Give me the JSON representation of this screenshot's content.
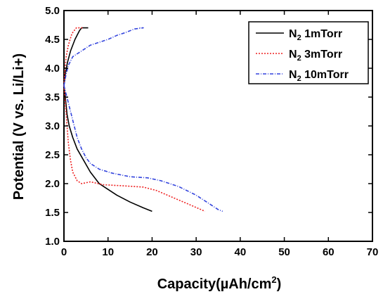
{
  "chart_data": {
    "type": "line",
    "xlabel_main": "Capacity(µAh/cm",
    "xlabel_sup": "2",
    "xlabel_close": ")",
    "ylabel": "Potential (V vs. Li/Li+)",
    "xlim": [
      0,
      70
    ],
    "ylim": [
      1.0,
      5.0
    ],
    "x_ticks": [
      "0",
      "10",
      "20",
      "30",
      "40",
      "50",
      "60",
      "70"
    ],
    "y_ticks": [
      "1.0",
      "1.5",
      "2.0",
      "2.5",
      "3.0",
      "3.5",
      "4.0",
      "4.5",
      "5.0"
    ],
    "grid": false,
    "legend_position": "top-right",
    "series": [
      {
        "name_main": "N",
        "name_sub": "2",
        "name_rest": " 1mTorr",
        "color": "#000000",
        "dash": "solid",
        "discharge": [
          [
            0,
            3.7
          ],
          [
            0.3,
            3.5
          ],
          [
            0.7,
            3.2
          ],
          [
            1.2,
            3.0
          ],
          [
            2,
            2.8
          ],
          [
            3,
            2.6
          ],
          [
            4.5,
            2.4
          ],
          [
            6,
            2.2
          ],
          [
            8,
            2.0
          ],
          [
            10,
            1.9
          ],
          [
            12,
            1.8
          ],
          [
            15,
            1.68
          ],
          [
            18,
            1.58
          ],
          [
            20,
            1.52
          ]
        ],
        "charge": [
          [
            0,
            3.7
          ],
          [
            0.3,
            3.9
          ],
          [
            0.8,
            4.1
          ],
          [
            1.5,
            4.3
          ],
          [
            2.5,
            4.5
          ],
          [
            3.5,
            4.65
          ],
          [
            4.0,
            4.7
          ],
          [
            5.5,
            4.7
          ]
        ]
      },
      {
        "name_main": "N",
        "name_sub": "2",
        "name_rest": " 3mTorr",
        "color": "#ee2222",
        "dash": "dotted",
        "discharge": [
          [
            0,
            3.7
          ],
          [
            0.3,
            3.4
          ],
          [
            0.7,
            3.0
          ],
          [
            1.0,
            2.7
          ],
          [
            1.5,
            2.4
          ],
          [
            2.0,
            2.2
          ],
          [
            3.0,
            2.05
          ],
          [
            4.0,
            2.0
          ],
          [
            6,
            2.03
          ],
          [
            9,
            1.98
          ],
          [
            14,
            1.96
          ],
          [
            18,
            1.94
          ],
          [
            21,
            1.88
          ],
          [
            25,
            1.75
          ],
          [
            29,
            1.62
          ],
          [
            32,
            1.52
          ]
        ],
        "charge": [
          [
            0,
            3.7
          ],
          [
            0.2,
            3.95
          ],
          [
            0.5,
            4.2
          ],
          [
            1.0,
            4.4
          ],
          [
            1.8,
            4.6
          ],
          [
            2.8,
            4.7
          ],
          [
            4.5,
            4.7
          ]
        ]
      },
      {
        "name_main": "N",
        "name_sub": "2",
        "name_rest": " 10mTorr",
        "color": "#3344dd",
        "dash": "dashdot",
        "discharge": [
          [
            0,
            3.7
          ],
          [
            1,
            3.4
          ],
          [
            2,
            3.1
          ],
          [
            3,
            2.8
          ],
          [
            4,
            2.6
          ],
          [
            5,
            2.45
          ],
          [
            6,
            2.35
          ],
          [
            8,
            2.25
          ],
          [
            11,
            2.18
          ],
          [
            15,
            2.12
          ],
          [
            19,
            2.1
          ],
          [
            22,
            2.05
          ],
          [
            26,
            1.95
          ],
          [
            30,
            1.8
          ],
          [
            33,
            1.65
          ],
          [
            35,
            1.55
          ],
          [
            36,
            1.52
          ]
        ],
        "charge": [
          [
            0,
            3.7
          ],
          [
            0.5,
            3.9
          ],
          [
            1,
            4.05
          ],
          [
            2,
            4.2
          ],
          [
            4,
            4.3
          ],
          [
            6,
            4.4
          ],
          [
            8,
            4.45
          ],
          [
            10,
            4.5
          ],
          [
            12,
            4.57
          ],
          [
            14,
            4.62
          ],
          [
            16,
            4.68
          ],
          [
            18,
            4.7
          ],
          [
            17,
            4.7
          ]
        ]
      }
    ]
  }
}
